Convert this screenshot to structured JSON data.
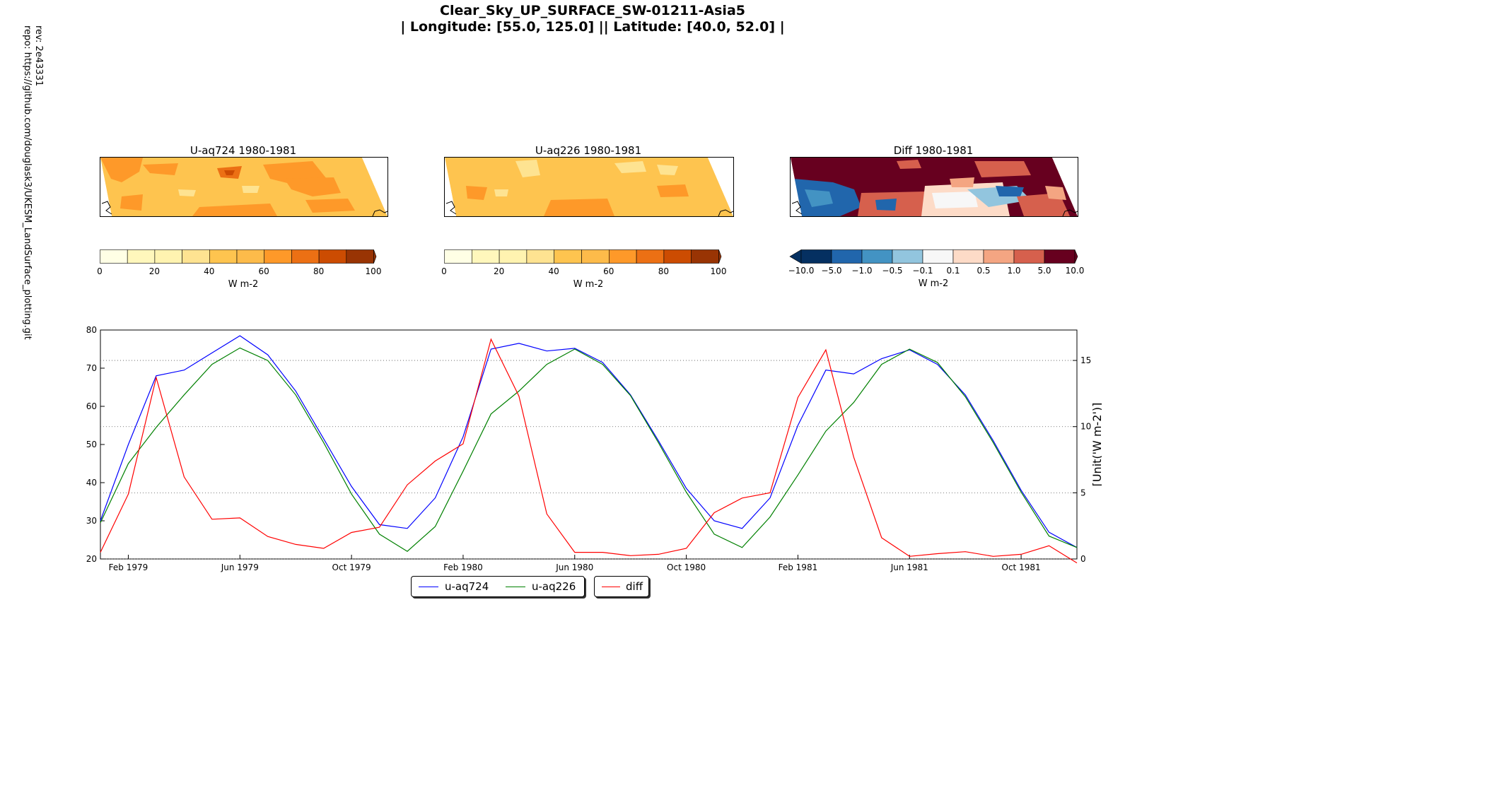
{
  "page": {
    "title_line1": "Clear_Sky_UP_SURFACE_SW-01211-Asia5",
    "title_line2": "| Longitude: [55.0, 125.0] || Latitude: [40.0, 52.0] |",
    "rev": "rev:  2e43331",
    "repo": "repo: https://github.com/douglask3/UKESM_LandSurface_plotting.git"
  },
  "maps": [
    {
      "title": "U-aq724 1980-1981",
      "palette": "orange"
    },
    {
      "title": "U-aq226 1980-1981",
      "palette": "orange"
    },
    {
      "title": "Diff 1980-1981",
      "palette": "diverging"
    }
  ],
  "colorbars": {
    "orange": {
      "ticks": [
        "0",
        "20",
        "40",
        "60",
        "80",
        "100"
      ],
      "label": "W m-2",
      "colors": [
        "#ffffe5",
        "#fff7bc",
        "#fff3b0",
        "#fee391",
        "#fec44f",
        "#fdbb4a",
        "#fe9929",
        "#ec7014",
        "#cc4c02",
        "#993404"
      ],
      "extend_color": "#993404"
    },
    "diverging": {
      "ticks": [
        "−10.0",
        "−5.0",
        "−1.0",
        "−0.5",
        "−0.1",
        "0.1",
        "0.5",
        "1.0",
        "5.0",
        "10.0"
      ],
      "label": "W m-2",
      "colors": [
        "#053061",
        "#2166ac",
        "#4393c3",
        "#92c5de",
        "#f7f7f7",
        "#fddbc7",
        "#f4a582",
        "#d6604d",
        "#67001f"
      ],
      "extend_low": "#053061",
      "extend_high": "#67001f"
    }
  },
  "chart_data": {
    "type": "line",
    "x": [
      "1979-01",
      "1979-02",
      "1979-03",
      "1979-04",
      "1979-05",
      "1979-06",
      "1979-07",
      "1979-08",
      "1979-09",
      "1979-10",
      "1979-11",
      "1979-12",
      "1980-01",
      "1980-02",
      "1980-03",
      "1980-04",
      "1980-05",
      "1980-06",
      "1980-07",
      "1980-08",
      "1980-09",
      "1980-10",
      "1980-11",
      "1980-12",
      "1981-01",
      "1981-02",
      "1981-03",
      "1981-04",
      "1981-05",
      "1981-06",
      "1981-07",
      "1981-08",
      "1981-09",
      "1981-10",
      "1981-11",
      "1981-12"
    ],
    "x_tick_labels": [
      "Feb 1979",
      "Jun 1979",
      "Oct 1979",
      "Feb 1980",
      "Jun 1980",
      "Oct 1980",
      "Feb 1981",
      "Jun 1981",
      "Oct 1981"
    ],
    "x_tick_dates": [
      "1979-02",
      "1979-06",
      "1979-10",
      "1980-02",
      "1980-06",
      "1980-10",
      "1981-02",
      "1981-06",
      "1981-10"
    ],
    "ylim": [
      20,
      80
    ],
    "yticks": [
      20,
      30,
      40,
      50,
      60,
      70,
      80
    ],
    "y2lim": [
      0,
      17.3
    ],
    "y2ticks": [
      0,
      5,
      10,
      15
    ],
    "y2label": "[Unit('W m-2')]",
    "grid": "dotted horizontal on secondary axis",
    "legend": "bottom-center",
    "series": [
      {
        "name": "u-aq724",
        "axis": "left",
        "color": "#0000ff",
        "values": [
          30.0,
          50.0,
          68.0,
          69.5,
          74.0,
          78.5,
          73.5,
          64.0,
          51.5,
          39.0,
          29.0,
          28.0,
          36.0,
          52.0,
          75.0,
          76.5,
          74.5,
          75.2,
          71.5,
          63.0,
          51.0,
          38.5,
          30.0,
          28.0,
          36.0,
          55.0,
          69.5,
          68.5,
          72.5,
          74.8,
          71.0,
          63.0,
          51.0,
          38.0,
          27.0,
          23.0
        ]
      },
      {
        "name": "u-aq226",
        "axis": "left",
        "color": "#008000",
        "values": [
          29.5,
          45.0,
          54.5,
          63.0,
          71.0,
          75.3,
          72.0,
          63.0,
          50.5,
          37.0,
          26.5,
          22.0,
          28.5,
          43.0,
          58.0,
          64.0,
          71.0,
          75.0,
          71.0,
          62.8,
          50.5,
          37.5,
          26.5,
          23.0,
          31.0,
          42.0,
          53.5,
          61.0,
          71.0,
          75.0,
          71.5,
          62.5,
          50.5,
          37.5,
          26.0,
          23.0
        ]
      },
      {
        "name": "diff",
        "axis": "right",
        "color": "#ff0000",
        "values": [
          0.5,
          4.9,
          13.7,
          6.2,
          3.0,
          3.1,
          1.7,
          1.1,
          0.8,
          2.0,
          2.4,
          5.6,
          7.4,
          8.7,
          16.6,
          12.3,
          3.4,
          0.5,
          0.5,
          0.25,
          0.35,
          0.8,
          3.5,
          4.6,
          5.0,
          12.2,
          15.8,
          7.7,
          1.6,
          0.2,
          0.4,
          0.55,
          0.2,
          0.35,
          1.0,
          -0.3
        ]
      }
    ]
  }
}
